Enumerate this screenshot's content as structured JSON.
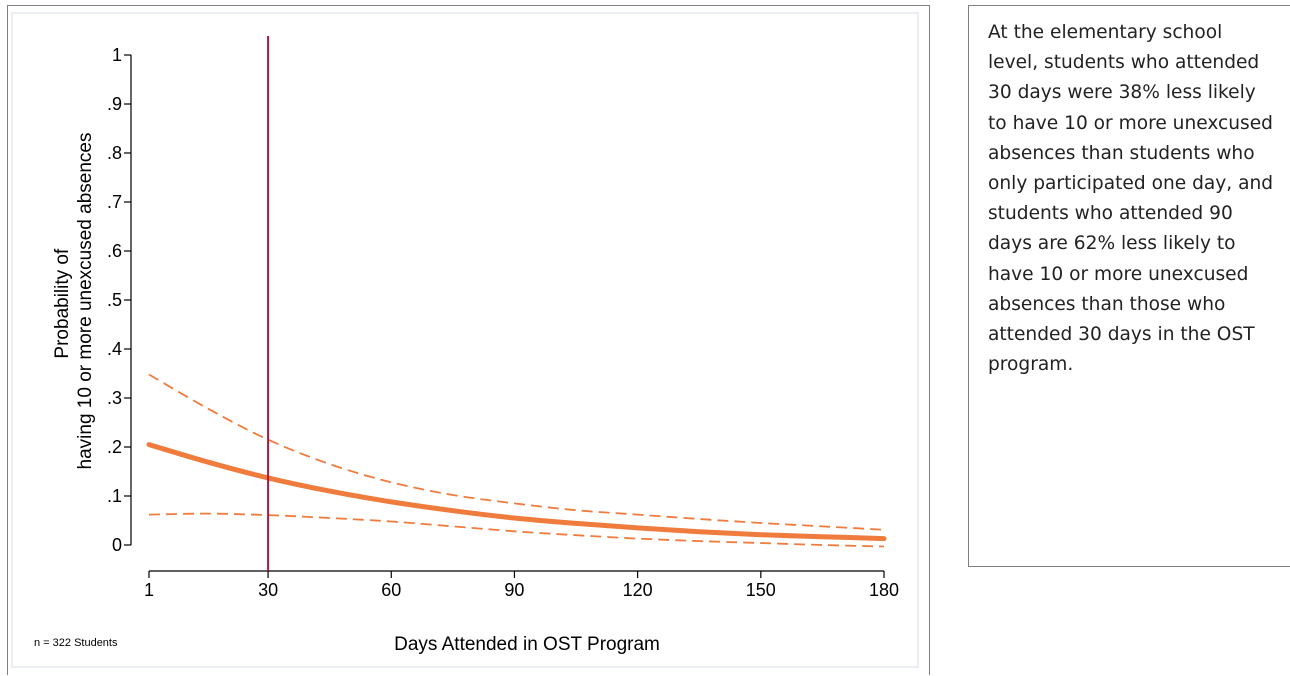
{
  "chart_data": {
    "type": "line",
    "x_label": "Days Attended in OST Program",
    "y_label_lines": [
      "Probability of",
      "having 10 or more unexcused absences"
    ],
    "note": "n = 322 Students",
    "x_ticks": [
      1,
      30,
      60,
      90,
      120,
      150,
      180
    ],
    "x_tick_labels": [
      "1",
      "30",
      "60",
      "90",
      "120",
      "150",
      "180"
    ],
    "y_ticks": [
      0,
      0.1,
      0.2,
      0.3,
      0.4,
      0.5,
      0.6,
      0.7,
      0.8,
      0.9,
      1
    ],
    "y_tick_labels": [
      "0",
      ".1",
      ".2",
      ".3",
      ".4",
      ".5",
      ".6",
      ".7",
      ".8",
      ".9",
      "1"
    ],
    "xlim": [
      1,
      180
    ],
    "ylim": [
      0,
      1
    ],
    "reference_line_x": 30,
    "grid": false,
    "series": [
      {
        "role": "estimate",
        "style": "solid",
        "x": [
          1,
          15,
          30,
          45,
          60,
          75,
          90,
          105,
          120,
          135,
          150,
          165,
          180
        ],
        "y": [
          0.205,
          0.17,
          0.137,
          0.11,
          0.088,
          0.07,
          0.055,
          0.044,
          0.035,
          0.027,
          0.021,
          0.017,
          0.013
        ]
      },
      {
        "role": "upper",
        "style": "dashed",
        "x": [
          1,
          15,
          30,
          45,
          60,
          75,
          90,
          105,
          120,
          135,
          150,
          165,
          180
        ],
        "y": [
          0.348,
          0.28,
          0.215,
          0.165,
          0.128,
          0.102,
          0.085,
          0.071,
          0.062,
          0.053,
          0.045,
          0.038,
          0.031
        ]
      },
      {
        "role": "lower",
        "style": "dashed",
        "x": [
          1,
          15,
          30,
          45,
          60,
          75,
          90,
          105,
          120,
          135,
          150,
          165,
          180
        ],
        "y": [
          0.062,
          0.064,
          0.061,
          0.055,
          0.048,
          0.038,
          0.028,
          0.02,
          0.013,
          0.008,
          0.004,
          0.0,
          -0.003
        ]
      }
    ],
    "colors": {
      "series": "#ef7b3d",
      "reference_line": "#b0183f",
      "axis": "#000000",
      "plot_border": "#dbe4ee"
    }
  },
  "callout": {
    "text": "At the elementary school level, students who attended 30 days were 38% less likely to have 10 or more unexcused absences than students who only participated one day, and students who attended 90 days are 62% less likely to have 10 or more unexcused absences than those who attended 30 days in the OST program."
  }
}
